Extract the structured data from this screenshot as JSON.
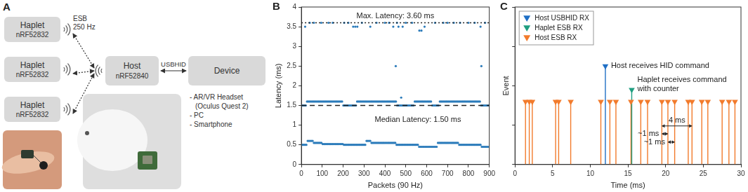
{
  "diagram": {
    "panel": "A",
    "haplets": [
      {
        "label": "Haplet",
        "chip": "nRF52832"
      },
      {
        "label": "Haplet",
        "chip": "nRF52832"
      },
      {
        "label": "Haplet",
        "chip": "nRF52832"
      }
    ],
    "wireless_link": {
      "protocol": "ESB",
      "rate": "250 Hz"
    },
    "host": {
      "label": "Host",
      "chip": "nRF52840"
    },
    "usb_link": "USBHID",
    "device": {
      "label": "Device"
    },
    "device_list": [
      "- AR/VR Headset",
      "(Oculus Quest 2)",
      "- PC",
      "- Smartphone"
    ]
  },
  "chart_data": [
    {
      "panel": "B",
      "type": "scatter",
      "x_label": "Packets (90 Hz)",
      "y_label": "Latency (ms)",
      "xlim": [
        0,
        900
      ],
      "xticks": [
        0,
        100,
        200,
        300,
        400,
        500,
        600,
        700,
        800,
        900
      ],
      "ylim": [
        0,
        4
      ],
      "yticks": [
        0,
        0.5,
        1,
        1.5,
        2,
        2.5,
        3,
        3.5,
        4
      ],
      "color": "#2b7bba",
      "marker": "circle",
      "grid": false,
      "x": [
        0,
        6,
        12,
        18,
        24,
        30,
        36,
        42,
        48,
        54,
        60,
        66,
        72,
        78,
        84,
        90,
        96,
        102,
        108,
        114,
        120,
        126,
        132,
        138,
        144,
        150,
        156,
        162,
        168,
        174,
        180,
        186,
        192,
        198,
        204,
        210,
        216,
        222,
        228,
        234,
        240,
        246,
        252,
        258,
        264,
        270,
        276,
        282,
        288,
        294,
        300,
        306,
        312,
        318,
        324,
        330,
        336,
        342,
        348,
        354,
        360,
        366,
        372,
        378,
        384,
        390,
        396,
        402,
        408,
        414,
        420,
        426,
        432,
        438,
        444,
        450,
        456,
        462,
        468,
        474,
        480,
        486,
        492,
        498,
        504,
        510,
        516,
        522,
        528,
        534,
        540,
        546,
        552,
        558,
        564,
        570,
        576,
        582,
        588,
        594,
        600,
        606,
        612,
        618,
        624,
        630,
        636,
        642,
        648,
        654,
        660,
        666,
        672,
        678,
        684,
        690,
        696,
        702,
        708,
        714,
        720,
        726,
        732,
        738,
        744,
        750,
        756,
        762,
        768,
        774,
        780,
        786,
        792,
        798,
        804,
        810,
        816,
        822,
        828,
        834,
        840,
        846,
        852,
        858,
        864,
        870,
        876,
        882,
        888,
        894,
        3,
        9,
        15,
        21,
        27,
        33,
        39,
        45,
        51,
        57,
        63,
        69,
        75,
        81,
        87,
        93,
        99,
        105,
        111,
        117,
        123,
        129,
        135,
        141,
        147,
        153,
        159,
        165,
        171,
        177,
        183,
        189,
        195,
        201,
        207,
        213,
        219,
        225,
        231,
        237,
        243,
        249,
        255,
        261,
        267,
        273,
        279,
        285,
        291,
        297,
        303,
        309,
        315,
        321,
        327,
        333,
        339,
        345,
        351,
        357,
        363,
        369,
        375,
        381,
        387,
        393,
        399,
        405,
        411,
        417,
        423,
        429,
        435,
        441,
        447,
        453,
        459,
        465,
        471,
        477,
        483,
        489,
        495,
        501,
        507,
        513,
        519,
        525,
        531,
        537,
        543,
        549,
        555,
        561,
        567,
        573,
        579,
        585,
        591,
        597,
        603,
        609,
        615,
        621,
        627,
        633,
        639,
        645,
        651,
        657,
        663,
        669,
        675,
        681,
        687,
        693,
        699,
        705,
        711,
        717,
        723,
        729,
        735,
        741,
        747,
        753,
        759,
        765,
        771,
        777,
        783,
        789,
        795,
        801,
        807,
        813,
        819,
        825,
        831,
        837,
        843,
        849,
        855,
        861,
        867,
        873,
        879,
        885,
        891,
        897,
        18,
        40,
        60,
        95,
        130,
        150,
        205,
        225,
        248,
        258,
        268,
        290,
        330,
        360,
        400,
        420,
        440,
        452,
        458,
        465,
        478,
        485,
        500,
        530,
        565,
        575,
        590,
        640,
        680,
        700,
        730,
        760,
        800,
        830,
        858,
        862,
        880
      ],
      "values": [
        0.5,
        0.5,
        0.5,
        0.5,
        0.5,
        0.6,
        0.6,
        0.6,
        0.6,
        0.6,
        0.55,
        0.55,
        0.55,
        0.55,
        0.55,
        0.55,
        0.55,
        0.52,
        0.52,
        0.52,
        0.52,
        0.52,
        0.52,
        0.52,
        0.52,
        0.52,
        0.52,
        0.52,
        0.52,
        0.52,
        0.52,
        0.52,
        0.52,
        0.52,
        0.5,
        0.5,
        0.5,
        0.5,
        0.5,
        0.5,
        0.5,
        0.5,
        0.5,
        0.5,
        0.5,
        0.5,
        0.5,
        0.5,
        0.5,
        0.5,
        0.5,
        0.5,
        0.6,
        0.6,
        0.6,
        0.6,
        0.55,
        0.55,
        0.55,
        0.55,
        0.55,
        0.55,
        0.55,
        0.55,
        0.55,
        0.55,
        0.55,
        0.55,
        0.55,
        0.55,
        0.55,
        0.55,
        0.55,
        0.55,
        0.55,
        0.55,
        0.5,
        0.5,
        0.5,
        0.5,
        0.5,
        0.5,
        0.5,
        0.5,
        0.5,
        0.5,
        0.5,
        0.5,
        0.5,
        0.5,
        0.5,
        0.5,
        0.5,
        0.5,
        0.45,
        0.45,
        0.45,
        0.45,
        0.45,
        0.45,
        0.45,
        0.45,
        0.45,
        0.45,
        0.45,
        0.45,
        0.45,
        0.45,
        0.45,
        0.55,
        0.55,
        0.55,
        0.55,
        0.55,
        0.55,
        0.55,
        0.55,
        0.55,
        0.55,
        0.55,
        0.55,
        0.55,
        0.55,
        0.55,
        0.55,
        0.55,
        0.5,
        0.5,
        0.5,
        0.5,
        0.5,
        0.5,
        0.5,
        0.5,
        0.5,
        0.5,
        0.5,
        0.5,
        0.5,
        0.5,
        0.5,
        0.5,
        0.5,
        0.5,
        0.45,
        0.45,
        0.45,
        0.45,
        0.45,
        0.45,
        1.5,
        1.5,
        1.5,
        1.5,
        1.6,
        1.6,
        1.6,
        1.6,
        1.6,
        1.6,
        1.6,
        1.6,
        1.6,
        1.6,
        1.6,
        1.6,
        1.6,
        1.6,
        1.6,
        1.6,
        1.6,
        1.6,
        1.6,
        1.6,
        1.6,
        1.6,
        1.6,
        1.6,
        1.6,
        1.6,
        1.6,
        1.6,
        1.6,
        1.5,
        1.5,
        1.5,
        1.5,
        1.5,
        1.5,
        1.5,
        1.5,
        1.5,
        1.5,
        1.5,
        1.6,
        1.6,
        1.6,
        1.6,
        1.6,
        1.6,
        1.6,
        1.6,
        1.6,
        1.6,
        1.6,
        1.6,
        1.6,
        1.6,
        1.6,
        1.6,
        1.6,
        1.6,
        1.6,
        1.6,
        1.6,
        1.6,
        1.6,
        1.6,
        1.6,
        1.6,
        1.6,
        1.6,
        1.6,
        1.6,
        1.6,
        1.6,
        1.5,
        1.5,
        1.5,
        1.5,
        1.5,
        1.5,
        1.5,
        1.5,
        1.5,
        1.5,
        1.5,
        1.5,
        1.5,
        1.5,
        1.6,
        1.6,
        1.6,
        1.6,
        1.6,
        1.6,
        1.6,
        1.6,
        1.6,
        1.6,
        1.6,
        1.6,
        1.6,
        1.6,
        1.5,
        1.5,
        1.5,
        1.5,
        1.5,
        1.5,
        1.6,
        1.6,
        1.6,
        1.6,
        1.6,
        1.6,
        1.6,
        1.6,
        1.6,
        1.6,
        1.6,
        1.6,
        1.6,
        1.6,
        1.6,
        1.6,
        1.6,
        1.6,
        1.6,
        1.6,
        1.6,
        1.6,
        1.6,
        1.6,
        1.6,
        1.6,
        1.6,
        1.6,
        1.6,
        1.6,
        1.6,
        1.6,
        1.6,
        1.5,
        1.5,
        1.5,
        1.5,
        1.5,
        1.5,
        1.5,
        3.5,
        3.6,
        3.6,
        3.6,
        3.6,
        3.6,
        3.6,
        3.6,
        3.5,
        3.5,
        3.5,
        3.6,
        3.5,
        3.6,
        3.6,
        3.6,
        3.5,
        2.5,
        3.6,
        3.5,
        1.7,
        3.5,
        3.6,
        3.6,
        3.4,
        3.4,
        3.5,
        3.6,
        3.6,
        3.6,
        3.6,
        3.6,
        3.6,
        3.6,
        3.5,
        2.5,
        3.6
      ],
      "reference_lines": [
        {
          "value": 3.6,
          "label": "Max. Latency: 3.60 ms",
          "line_style": "dotted"
        },
        {
          "value": 1.5,
          "label": "Median Latency: 1.50 ms",
          "line_style": "dashed"
        }
      ]
    },
    {
      "panel": "C",
      "type": "stem",
      "x_label": "Time (ms)",
      "y_label": "Event",
      "xlim": [
        0,
        30
      ],
      "xticks": [
        0,
        5,
        10,
        15,
        20,
        25,
        30
      ],
      "ylim": [
        0,
        4
      ],
      "yticks": [
        0,
        1,
        2,
        3,
        4
      ],
      "tick_labels": "x",
      "grid": false,
      "legend": "top-left",
      "series": [
        {
          "name": "Host USBHID RX",
          "color": "#1f6fc5",
          "marker": "triangle-down",
          "x": [
            12
          ],
          "values": [
            2.5
          ],
          "annotation": [
            "Host receives HID command"
          ]
        },
        {
          "name": "Haplet ESB RX",
          "color": "#1f9e80",
          "marker": "triangle-down",
          "x": [
            15.5
          ],
          "values": [
            1.9
          ],
          "annotation": [
            "Haplet receives command",
            "with counter"
          ]
        },
        {
          "name": "Host ESB RX",
          "color": "#f27b2c",
          "marker": "triangle-down",
          "x": [
            1.4,
            1.9,
            2.3,
            5.4,
            5.8,
            7.4,
            11.4,
            12.6,
            13.4,
            15.4,
            16.7,
            17.6,
            19.5,
            20.3,
            21.2,
            23.0,
            23.5,
            24.8,
            25.6,
            27.5,
            28.4,
            29.2
          ],
          "values": [
            1.6,
            1.6,
            1.6,
            1.6,
            1.6,
            1.6,
            1.6,
            1.6,
            1.6,
            1.6,
            1.6,
            1.6,
            1.6,
            1.6,
            1.6,
            1.6,
            1.6,
            1.6,
            1.6,
            1.6,
            1.6,
            1.6
          ]
        }
      ],
      "intervals": [
        {
          "from": 19.5,
          "to": 23.5,
          "y": 0.98,
          "label": "4 ms"
        },
        {
          "from": 19.5,
          "to": 20.3,
          "y": 0.78,
          "label": "~1 ms"
        },
        {
          "from": 20.3,
          "to": 21.2,
          "y": 0.57,
          "label": "~1 ms"
        }
      ]
    }
  ]
}
